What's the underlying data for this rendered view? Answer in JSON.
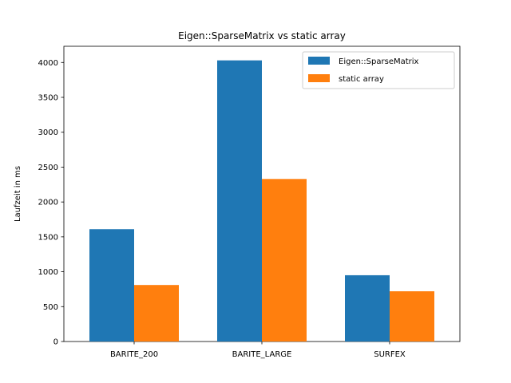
{
  "chart_data": {
    "type": "bar",
    "title": "Eigen::SparseMatrix vs static array",
    "xlabel": "",
    "ylabel": "Laufzeit in ms",
    "categories": [
      "BARITE_200",
      "BARITE_LARGE",
      "SURFEX"
    ],
    "series": [
      {
        "name": "Eigen::SparseMatrix",
        "color": "#1f77b4",
        "values": [
          1610,
          4030,
          950
        ]
      },
      {
        "name": "static array",
        "color": "#ff7f0e",
        "values": [
          810,
          2330,
          720
        ]
      }
    ],
    "ylim": [
      0,
      4232
    ],
    "yticks": [
      0,
      500,
      1000,
      1500,
      2000,
      2500,
      3000,
      3500,
      4000
    ],
    "grid": false,
    "legend": "top-right"
  }
}
